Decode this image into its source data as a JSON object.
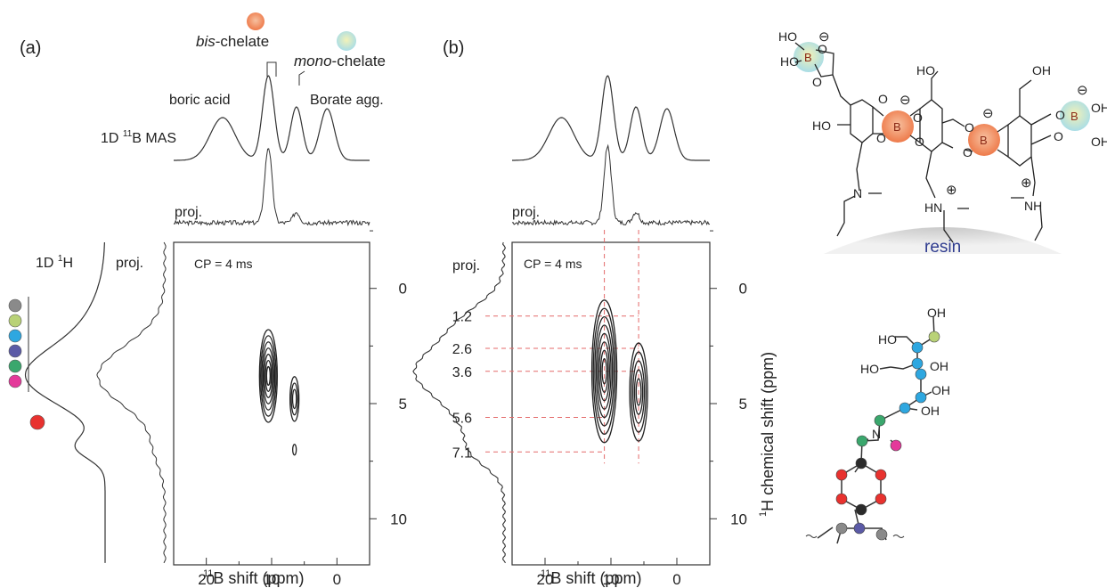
{
  "panel_a": {
    "letter": "(a)",
    "label_bis_pre": "bis",
    "label_bis_post": "-chelate",
    "label_mono_pre": "mono",
    "label_mono_post": "-chelate",
    "label_boric": "boric acid",
    "label_borate": "Borate agg.",
    "label_1d_pre": "1D ",
    "label_1d_sup": "11",
    "label_1d_post": "B MAS",
    "label_proj_top": "proj.",
    "label_1dh_pre": "1D ",
    "label_1dh_sup": "1",
    "label_1dh_post": "H",
    "label_proj_left": "proj.",
    "cp_label": "CP = 4 ms"
  },
  "panel_b": {
    "letter": "(b)",
    "label_proj_top": "proj.",
    "label_proj_left": "proj.",
    "cp_label": "CP = 4 ms",
    "h_shift_marks": [
      "1.2",
      "2.6",
      "3.6",
      "5.6",
      "7.1"
    ]
  },
  "axes": {
    "x_label_sup": "11",
    "x_label_post": "B shift (ppm)",
    "y_label_sup": "1",
    "y_label_post": "H chemical shift (ppm)",
    "x_ticks": [
      "20",
      "10",
      "0"
    ],
    "y_ticks": [
      "0",
      "5",
      "10"
    ]
  },
  "structure": {
    "resin_label": "resin",
    "atoms": [
      "HO",
      "HO",
      "B",
      "O",
      "O",
      "HO",
      "HO",
      "O",
      "O",
      "B",
      "O",
      "O",
      "B",
      "O",
      "O",
      "OH",
      "O",
      "O",
      "B",
      "OH",
      "OH",
      "N",
      "HN",
      "NH"
    ],
    "charges": [
      "⊖",
      "⊖",
      "⊖",
      "⊖",
      "⊕",
      "⊕"
    ],
    "lower_atoms": [
      "OH",
      "HO",
      "OH",
      "HO",
      "OH",
      "OH",
      "N"
    ]
  },
  "colors": {
    "red": "#e8322f",
    "orange": "#f39a6a",
    "yellow": "#b9d277",
    "blue": "#2ea7e0",
    "purple": "#5b5aa6",
    "green": "#3aa76d",
    "magenta": "#e4399a",
    "gray": "#8a8a8a",
    "black": "#2b2b2b",
    "dash": "#e46a6a",
    "resin": "#d8d8d8"
  },
  "chart_data": [
    {
      "type": "line",
      "title": "",
      "panel": "(a)",
      "xlabel": "11B shift (ppm)",
      "ylabel": "1H chemical shift (ppm)",
      "xlim": [
        25,
        -5
      ],
      "ylim": [
        12,
        -2
      ],
      "x_ticks": [
        20,
        10,
        0
      ],
      "y_ticks": [
        0,
        5,
        10
      ],
      "series": [
        {
          "name": "1D 11B MAS",
          "peaks_ppm": [
            17.5,
            10.5,
            6.2,
            1.5
          ]
        },
        {
          "name": "proj.",
          "peaks_ppm": [
            10.5,
            6.2
          ]
        }
      ],
      "contours": [
        {
          "x_ppm": 10.5,
          "y_ppm": 3.8
        },
        {
          "x_ppm": 6.5,
          "y_ppm": 4.8
        },
        {
          "x_ppm": 6.5,
          "y_ppm": 7.0
        }
      ],
      "h_projection_peaks_ppm": [
        3.8,
        6.9
      ],
      "h_1d_peaks_ppm": [
        3.9
      ]
    },
    {
      "type": "line",
      "title": "",
      "panel": "(b)",
      "xlabel": "11B shift (ppm)",
      "ylabel": "1H chemical shift (ppm)",
      "xlim": [
        25,
        -5
      ],
      "ylim": [
        12,
        -2
      ],
      "x_ticks": [
        20,
        10,
        0
      ],
      "y_ticks": [
        0,
        5,
        10
      ],
      "series": [
        {
          "name": "1D 11B MAS",
          "peaks_ppm": [
            17.5,
            10.5,
            6.2,
            1.5
          ]
        },
        {
          "name": "proj.",
          "peaks_ppm": [
            10.5,
            6.2
          ]
        }
      ],
      "contours": [
        {
          "x_ppm": 11.0,
          "y_ppm": 3.6
        },
        {
          "x_ppm": 5.8,
          "y_ppm": 4.5
        }
      ],
      "h_shift_marks_ppm": [
        1.2,
        2.6,
        3.6,
        5.6,
        7.1
      ]
    }
  ]
}
